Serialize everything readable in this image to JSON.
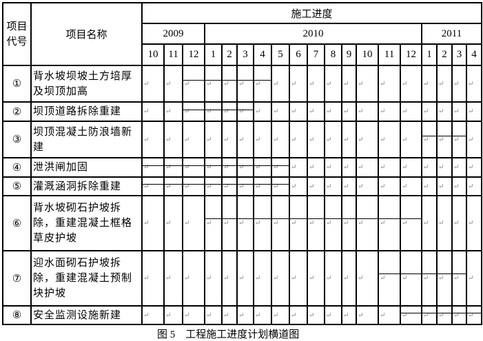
{
  "header": {
    "code": "项目代号",
    "name": "项目名称",
    "schedule": "施工进度",
    "years": [
      {
        "label": "2009",
        "span": 3
      },
      {
        "label": "2010",
        "span": 12
      },
      {
        "label": "2011",
        "span": 4
      }
    ],
    "months": [
      "10",
      "11",
      "12",
      "1",
      "2",
      "3",
      "4",
      "5",
      "6",
      "7",
      "8",
      "9",
      "10",
      "11",
      "12",
      "1",
      "2",
      "3",
      "4"
    ]
  },
  "paragraph_mark": "↵",
  "rows": [
    {
      "code": "①",
      "name": "背水坡坝坡土方培厚及坝顶加高",
      "bar": {
        "start": "2009-12",
        "end": "2010-4"
      }
    },
    {
      "code": "②",
      "name": "坝顶道路拆除重建",
      "bar": {
        "start": "2009-12",
        "end": "2010-3"
      }
    },
    {
      "code": "③",
      "name": "坝顶混凝土防浪墙新建",
      "bar": {
        "start": "2011-1",
        "end": "2011-3"
      }
    },
    {
      "code": "④",
      "name": "泄洪闸加固",
      "bar": {
        "start": "2009-10",
        "end": "2010-5"
      }
    },
    {
      "code": "⑤",
      "name": "灌溉涵洞拆除重建",
      "bar": {
        "start": "2009-10",
        "end": "2010-5"
      }
    },
    {
      "code": "⑥",
      "name": "背水坡砌石护坡拆除，重建混凝土框格草皮护坡",
      "bar": {
        "start": "2010-1",
        "end": "2010-12"
      }
    },
    {
      "code": "⑦",
      "name": "迎水面砌石护坡拆除，重建混凝土预制块护坡",
      "bar": {
        "start": "2010-11",
        "end": "2011-3"
      }
    },
    {
      "code": "⑧",
      "name": "安全监测设施新建",
      "bar": {
        "start": "2010-12",
        "end": "2011-4"
      }
    }
  ],
  "caption": "图 5　工程施工进度计划横道图"
}
